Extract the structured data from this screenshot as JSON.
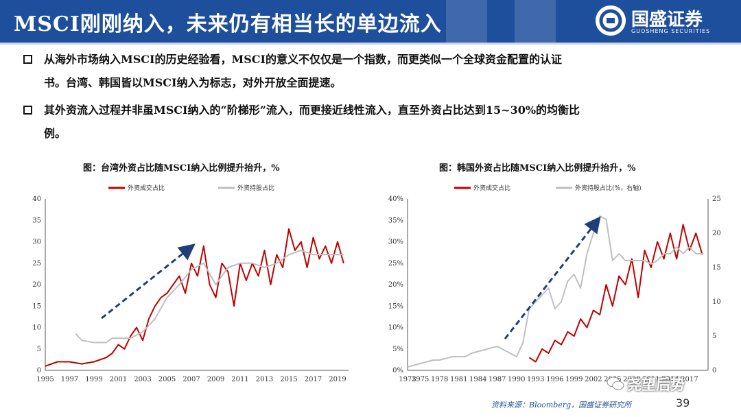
{
  "header": {
    "title": "MSCI刚刚纳入，未来仍有相当长的单边流入",
    "logo_name": "国盛证券",
    "logo_sub": "GUOSHENG SECURITIES",
    "brand_color": "#1e4f9c"
  },
  "bullets": [
    {
      "line1": "从海外市场纳入MSCI的历史经验看，MSCI的意义不仅仅是一个指数，而更类似一个全球资金配置的认证",
      "line2": "书。台湾、韩国皆以MSCI纳入为标志，对外开放全面提速。"
    },
    {
      "line1": "其外资流入过程并非虽MSCI纳入的“阶梯形”流入，而更接近线性流入，直至外资占比达到15~30%的均衡比",
      "line2": "例。"
    }
  ],
  "chart_data": [
    {
      "type": "line",
      "title": "图：台湾外资占比随MSCI纳入比例提升抬升，%",
      "ylim": [
        0,
        40
      ],
      "y_ticks": [
        "40",
        "35",
        "30",
        "25",
        "20",
        "15",
        "10",
        "5",
        "0"
      ],
      "x_ticks": [
        "1995",
        "1997",
        "1999",
        "2001",
        "2003",
        "2005",
        "2007",
        "2009",
        "2011",
        "2013",
        "2015",
        "2017",
        "2019"
      ],
      "series": [
        {
          "name": "外资成交占比",
          "color": "#c00000",
          "x": [
            1995,
            1996,
            1997,
            1998,
            1999,
            2000,
            2000.5,
            2001,
            2001.5,
            2002,
            2002.5,
            2003,
            2003.5,
            2004,
            2004.5,
            2005,
            2005.5,
            2006,
            2006.5,
            2007,
            2007.5,
            2008,
            2008.5,
            2009,
            2009.5,
            2010,
            2010.5,
            2011,
            2011.5,
            2012,
            2012.5,
            2013,
            2013.5,
            2014,
            2014.5,
            2015,
            2015.5,
            2016,
            2016.5,
            2017,
            2017.5,
            2018,
            2018.5,
            2019,
            2019.5
          ],
          "y": [
            1,
            2,
            2,
            1.5,
            2,
            3,
            4,
            6,
            5,
            8,
            10,
            7,
            12,
            15,
            17,
            18,
            20,
            22,
            18,
            25,
            22,
            29,
            20,
            17,
            25,
            23,
            15,
            25,
            21,
            25,
            22,
            28,
            20,
            27,
            24,
            33,
            28,
            30,
            24,
            31,
            26,
            29,
            25,
            30,
            25
          ]
        },
        {
          "name": "外资持股占比",
          "color": "#bfbfbf",
          "x": [
            1997.5,
            1998,
            1999,
            2000,
            2000.5,
            2001,
            2002,
            2003,
            2004,
            2005,
            2006,
            2007,
            2008,
            2009,
            2010,
            2011,
            2012,
            2013,
            2014,
            2015,
            2016,
            2017,
            2018,
            2019.5
          ],
          "y": [
            8.5,
            7,
            6.5,
            6.5,
            7.5,
            7.5,
            7.5,
            9,
            12,
            17,
            20,
            23.5,
            25,
            20,
            24,
            25,
            25,
            24,
            25,
            27,
            28,
            27,
            27,
            27
          ]
        }
      ],
      "annotation": "dashed-arrow"
    },
    {
      "type": "line",
      "title": "图：韩国外资占比随MSCI纳入比例提升抬升，%",
      "ylim_left": [
        0,
        40
      ],
      "ylim_right": [
        0,
        25
      ],
      "y_ticks_left": [
        "40%",
        "35%",
        "30%",
        "25%",
        "20%",
        "15%",
        "10%",
        "5%",
        "0%"
      ],
      "y_ticks_right": [
        "25",
        "20",
        "15",
        "10",
        "5",
        "0"
      ],
      "x_ticks": [
        "1973",
        "1975",
        "1978",
        "1981",
        "1984",
        "1987",
        "1990",
        "1993",
        "1996",
        "1999",
        "2002",
        "2005",
        "2008",
        "2011",
        "2014",
        "2017"
      ],
      "series": [
        {
          "name": "外资成交占比",
          "color": "#c00000",
          "x": [
            1992,
            1993,
            1994,
            1995,
            1996,
            1997,
            1998,
            1999,
            2000,
            2001,
            2002,
            2003,
            2004,
            2005,
            2006,
            2007,
            2008,
            2009,
            2010,
            2011,
            2012,
            2013,
            2014,
            2015,
            2016,
            2017,
            2018,
            2019
          ],
          "y": [
            3,
            2,
            5,
            4,
            7,
            6,
            9,
            8,
            12,
            10,
            14,
            13,
            20,
            15,
            22,
            20,
            26,
            17,
            28,
            24,
            30,
            26,
            32,
            26,
            34,
            28,
            32,
            27
          ]
        },
        {
          "name": "外资持股占比(%，右轴)",
          "color": "#bfbfbf",
          "x": [
            1973,
            1975,
            1977,
            1978,
            1980,
            1982,
            1983,
            1985,
            1987,
            1989,
            1990,
            1991,
            1992,
            1993,
            1994,
            1995,
            1996,
            1997,
            1998,
            1999,
            2000,
            2001,
            2002,
            2003,
            2004,
            2005,
            2006,
            2007,
            2008,
            2009,
            2010,
            2011,
            2012,
            2013,
            2014,
            2015,
            2016,
            2017,
            2018,
            2019
          ],
          "y": [
            0.5,
            1,
            1.5,
            1.5,
            2,
            2,
            2.5,
            3,
            3.5,
            2.5,
            2,
            4,
            9,
            10,
            11,
            12,
            9,
            10,
            13,
            14,
            12,
            17,
            20,
            22.5,
            22,
            16,
            17,
            16,
            16,
            16,
            16,
            15.5,
            16,
            17,
            17,
            18,
            17,
            18,
            17,
            17
          ]
        }
      ],
      "annotation": "dashed-arrow"
    }
  ],
  "footer": {
    "source": "资料来源：Bloomberg，国盛证券研究所",
    "page_number": "39",
    "watermark": "尧望后势"
  }
}
